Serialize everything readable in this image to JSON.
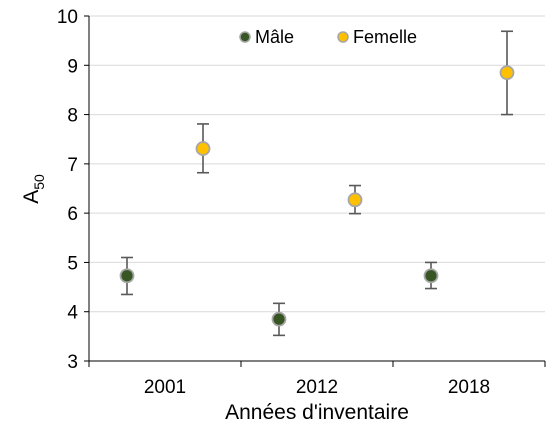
{
  "chart_data": {
    "type": "scatter",
    "categories": [
      "2001",
      "2012",
      "2018"
    ],
    "xlabel": "Années d'inventaire",
    "ylabel_main": "A",
    "ylabel_sub": "50",
    "ylim": [
      3,
      10
    ],
    "yticks": [
      "3",
      "4",
      "5",
      "6",
      "7",
      "8",
      "9",
      "10"
    ],
    "grid": "horizontal",
    "legend_position": "top",
    "series": [
      {
        "name": "Mâle",
        "color": "#375623",
        "marker_edge": "#a6a6a6",
        "points": [
          {
            "category": "2001",
            "y": 4.73,
            "low": 4.35,
            "high": 5.1
          },
          {
            "category": "2012",
            "y": 3.85,
            "low": 3.52,
            "high": 4.17
          },
          {
            "category": "2018",
            "y": 4.73,
            "low": 4.47,
            "high": 5.0
          }
        ]
      },
      {
        "name": "Femelle",
        "color": "#ffc000",
        "marker_edge": "#a6a6a6",
        "points": [
          {
            "category": "2001",
            "y": 7.31,
            "low": 6.82,
            "high": 7.81
          },
          {
            "category": "2012",
            "y": 6.27,
            "low": 5.99,
            "high": 6.56
          },
          {
            "category": "2018",
            "y": 8.85,
            "low": 8.0,
            "high": 9.69
          }
        ]
      }
    ],
    "errorbar_color": "#595959",
    "gridline_color": "#d9d9d9",
    "axis_color": "#000000"
  }
}
